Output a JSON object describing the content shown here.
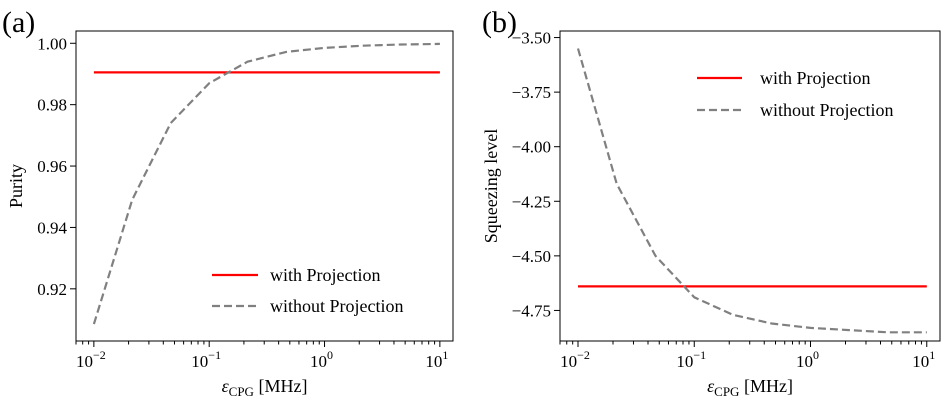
{
  "chart_data": [
    {
      "type": "line",
      "panel_label": "(a)",
      "xlabel": {
        "symbol": "ε",
        "sub": "CPG",
        "unit": "[MHz]"
      },
      "ylabel": "Purity",
      "xscale": "log",
      "xlim": [
        0.007,
        13
      ],
      "ylim": [
        0.903,
        1.004
      ],
      "xticks": [
        {
          "value": 0.01,
          "base": "10",
          "exp": "−2"
        },
        {
          "value": 0.1,
          "base": "10",
          "exp": "−1"
        },
        {
          "value": 1,
          "base": "10",
          "exp": "0"
        },
        {
          "value": 10,
          "base": "10",
          "exp": "1"
        }
      ],
      "yticks": [
        {
          "value": 0.92,
          "label": "0.92"
        },
        {
          "value": 0.94,
          "label": "0.94"
        },
        {
          "value": 0.96,
          "label": "0.96"
        },
        {
          "value": 0.98,
          "label": "0.98"
        },
        {
          "value": 1.0,
          "label": "1.00"
        }
      ],
      "legend_position": "lower-right",
      "series": [
        {
          "name": "with Projection",
          "color": "#ff0000",
          "dash": "solid",
          "x": [
            0.01,
            10
          ],
          "y": [
            0.9905,
            0.9905
          ]
        },
        {
          "name": "without Projection",
          "color": "#808080",
          "dash": "dashed",
          "x": [
            0.01,
            0.0215,
            0.0464,
            0.1,
            0.215,
            0.464,
            1,
            2.15,
            4.64,
            10
          ],
          "y": [
            0.9085,
            0.949,
            0.974,
            0.987,
            0.994,
            0.9972,
            0.9985,
            0.9992,
            0.9996,
            0.9998
          ]
        }
      ]
    },
    {
      "type": "line",
      "panel_label": "(b)",
      "xlabel": {
        "symbol": "ε",
        "sub": "CPG",
        "unit": "[MHz]"
      },
      "ylabel": "Squeezing level",
      "xscale": "log",
      "xlim": [
        0.007,
        13
      ],
      "ylim": [
        -4.89,
        -3.47
      ],
      "xticks": [
        {
          "value": 0.01,
          "base": "10",
          "exp": "−2"
        },
        {
          "value": 0.1,
          "base": "10",
          "exp": "−1"
        },
        {
          "value": 1,
          "base": "10",
          "exp": "0"
        },
        {
          "value": 10,
          "base": "10",
          "exp": "1"
        }
      ],
      "yticks": [
        {
          "value": -4.75,
          "label": "−4.75"
        },
        {
          "value": -4.5,
          "label": "−4.50"
        },
        {
          "value": -4.25,
          "label": "−4.25"
        },
        {
          "value": -4.0,
          "label": "−4.00"
        },
        {
          "value": -3.75,
          "label": "−3.75"
        },
        {
          "value": -3.5,
          "label": "−3.50"
        }
      ],
      "legend_position": "upper-right",
      "series": [
        {
          "name": "with Projection",
          "color": "#ff0000",
          "dash": "solid",
          "x": [
            0.01,
            10
          ],
          "y": [
            -4.64,
            -4.64
          ]
        },
        {
          "name": "without Projection",
          "color": "#808080",
          "dash": "dashed",
          "x": [
            0.01,
            0.0215,
            0.0464,
            0.1,
            0.215,
            0.464,
            1,
            2.15,
            4.64,
            10
          ],
          "y": [
            -3.55,
            -4.17,
            -4.5,
            -4.69,
            -4.77,
            -4.81,
            -4.83,
            -4.84,
            -4.85,
            -4.85
          ]
        }
      ]
    }
  ]
}
